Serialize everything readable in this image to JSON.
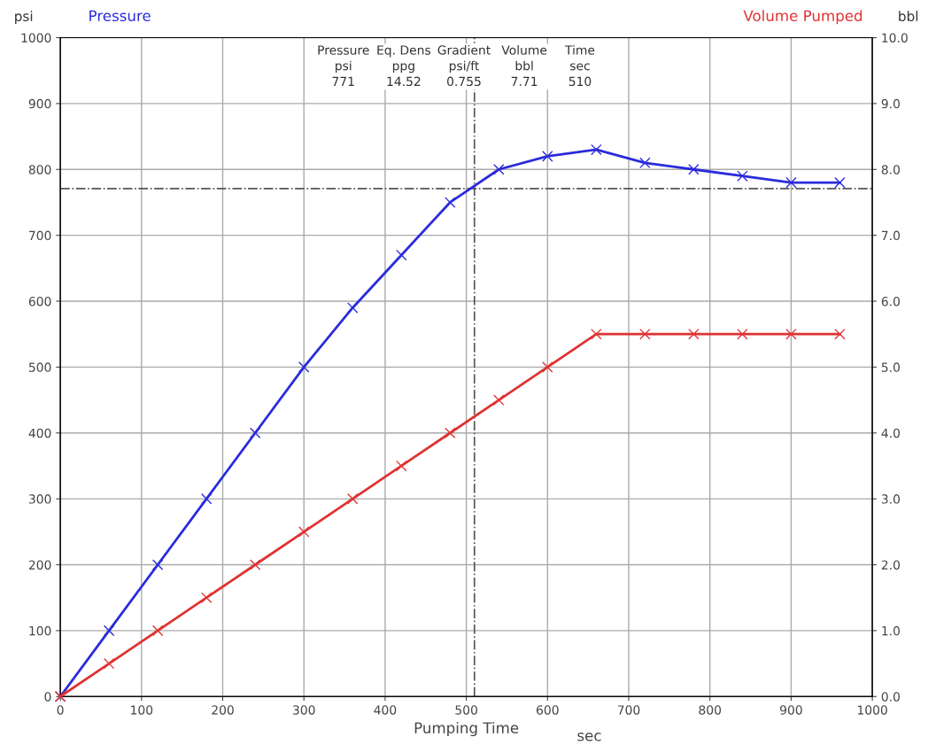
{
  "chart_data": {
    "type": "line",
    "xlabel": "Pumping Time",
    "ylabel": "psi",
    "y2label": "bbl",
    "x": [
      0,
      60,
      120,
      180,
      240,
      300,
      360,
      420,
      480,
      540,
      600,
      660,
      720,
      780,
      840,
      900,
      960
    ],
    "series": [
      {
        "name": "Pressure",
        "color": "#2b2bdc",
        "values": [
          0,
          100,
          200,
          300,
          400,
          500,
          590,
          670,
          750,
          800,
          820,
          830,
          810,
          800,
          790,
          780,
          780
        ]
      },
      {
        "name": "Volume Pumped",
        "color": "#e03232",
        "axis": "y2",
        "values": [
          0,
          0.5,
          1.0,
          1.5,
          2.0,
          2.5,
          3.0,
          3.5,
          4.0,
          4.5,
          5.0,
          5.5,
          5.5,
          5.5,
          5.5,
          5.5,
          5.5
        ]
      }
    ],
    "marker": "cross",
    "line_style": "solid",
    "grid": true,
    "xlim": [
      0,
      1000
    ],
    "xticks": [
      0,
      100,
      200,
      300,
      400,
      500,
      600,
      700,
      800,
      900,
      1000
    ],
    "ylim": [
      0,
      1000
    ],
    "yticks": [
      0,
      100,
      200,
      300,
      400,
      500,
      600,
      700,
      800,
      900,
      1000
    ],
    "y2lim": [
      0,
      10
    ],
    "y2ticks": [
      {
        "value": 0,
        "label": "0.0"
      },
      {
        "value": 1,
        "label": "1.0"
      },
      {
        "value": 2,
        "label": "2.0"
      },
      {
        "value": 3,
        "label": "3.0"
      },
      {
        "value": 4,
        "label": "4.0"
      },
      {
        "value": 5,
        "label": "5.0"
      },
      {
        "value": 6,
        "label": "6.0"
      },
      {
        "value": 7,
        "label": "7.0"
      },
      {
        "value": 8,
        "label": "8.0"
      },
      {
        "value": 9,
        "label": "9.0"
      },
      {
        "value": 10,
        "label": "10.0"
      }
    ],
    "ref_lines": [
      {
        "axis": "y",
        "value": 771,
        "color": "#555555",
        "line_style": "dashdot"
      },
      {
        "axis": "x",
        "value": 510,
        "color": "#555555",
        "line_style": "dashdot"
      }
    ],
    "annotations": [
      "Pressure\npsi\n771",
      "Eq. Dens\nppg\n14.52",
      "Gradient\npsi/ft\n0.755",
      "Volume\nbbl\n7.71",
      "Time\nsec\n510",
      "sec"
    ]
  }
}
